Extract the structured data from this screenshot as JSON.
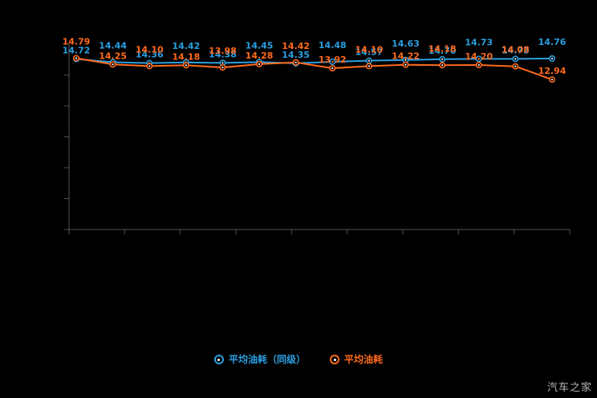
{
  "chart_data": {
    "type": "line",
    "x": [
      1,
      2,
      3,
      4,
      5,
      6,
      7,
      8,
      9,
      10,
      11,
      12,
      13,
      14
    ],
    "series": [
      {
        "name": "平均油耗（同级）",
        "color": "#2b9fe0",
        "values": [
          14.72,
          14.44,
          14.36,
          14.42,
          14.38,
          14.45,
          14.35,
          14.48,
          14.57,
          14.63,
          14.7,
          14.73,
          14.73,
          14.76
        ]
      },
      {
        "name": "平均油耗",
        "color": "#ff6a1c",
        "values": [
          14.79,
          14.25,
          14.1,
          14.18,
          13.98,
          14.28,
          14.42,
          13.92,
          14.1,
          14.22,
          14.18,
          14.2,
          14.08,
          12.94
        ]
      }
    ],
    "ylim": [
      0,
      16
    ],
    "grid": false,
    "legend_position": "bottom",
    "axis_color": "#555555",
    "background": "#000000",
    "label_decimals": 2
  },
  "watermark": "汽车之家"
}
